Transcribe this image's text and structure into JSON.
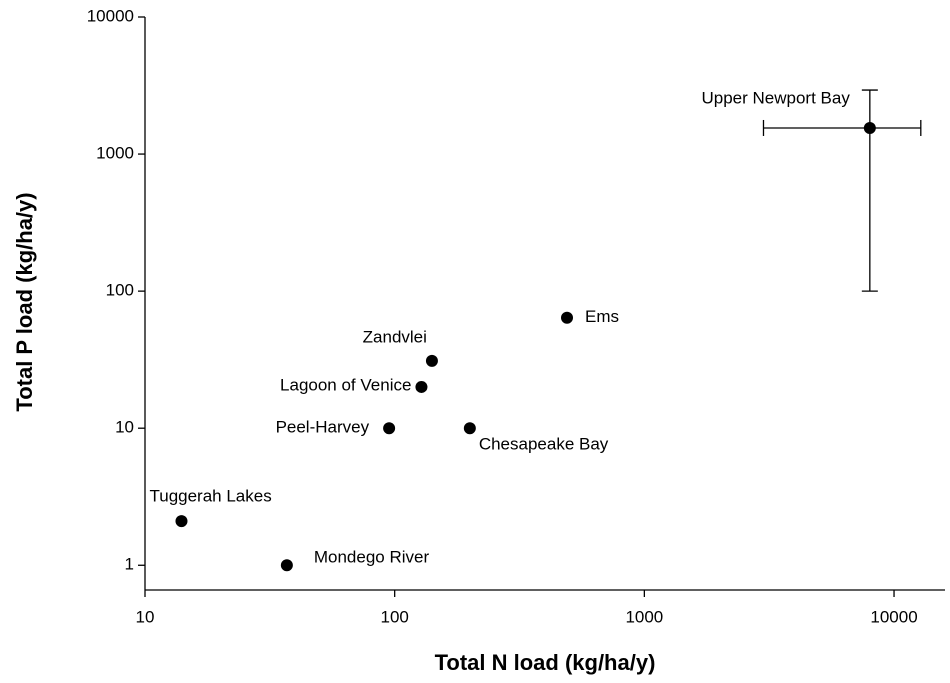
{
  "chart_data": {
    "type": "scatter",
    "x_label": "Total N load (kg/ha/y)",
    "y_label": "Total P load (kg/ha/y)",
    "x_log": true,
    "y_log": true,
    "color": "#000000",
    "labels": [
      "Tuggerah Lakes",
      "Mondego River",
      "Peel-Harvey",
      "Lagoon of Venice",
      "Zandvlei",
      "Chesapeake Bay",
      "Ems",
      "Upper Newport Bay"
    ],
    "x": [
      14,
      37,
      95,
      128,
      141,
      200,
      490,
      8000
    ],
    "values": [
      2.1,
      1,
      10,
      20,
      31,
      10,
      64,
      1550
    ],
    "x_low": [
      null,
      null,
      null,
      null,
      null,
      null,
      null,
      3000
    ],
    "x_high": [
      null,
      null,
      null,
      null,
      null,
      null,
      null,
      12800
    ],
    "y_low": [
      null,
      null,
      null,
      null,
      null,
      null,
      null,
      100
    ],
    "y_high": [
      null,
      null,
      null,
      null,
      null,
      null,
      null,
      2930
    ],
    "xlim": [
      10,
      16000
    ],
    "ylim": [
      0.66,
      10000
    ],
    "xticks": [
      10,
      100,
      1000,
      10000
    ],
    "yticks": [
      1,
      10,
      100,
      1000,
      10000
    ]
  }
}
